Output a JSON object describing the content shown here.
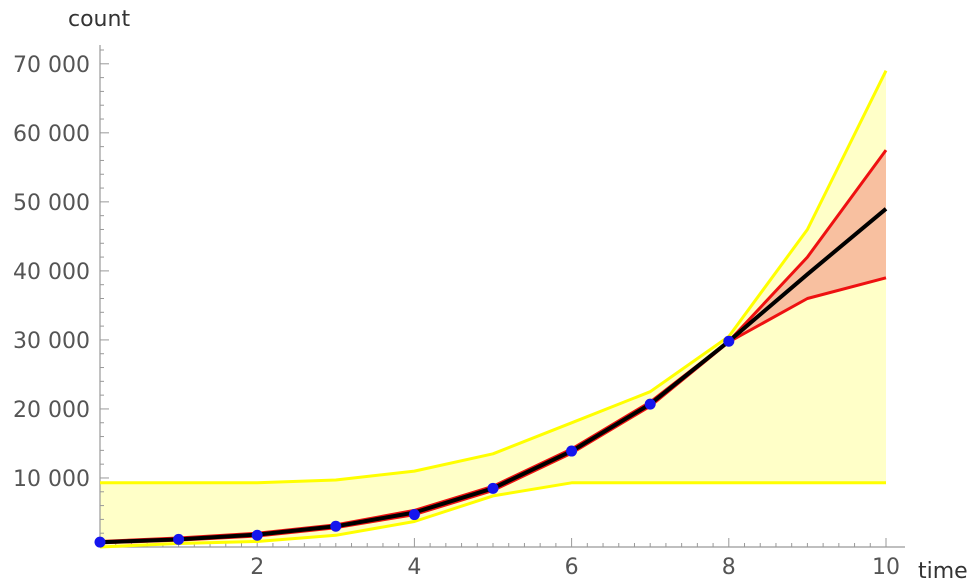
{
  "chart_data": {
    "type": "line",
    "xlabel": "time",
    "ylabel": "count",
    "xlim": [
      0,
      10
    ],
    "ylim": [
      0,
      72000
    ],
    "x_ticks": [
      2,
      4,
      6,
      8,
      10
    ],
    "x_tick_labels": [
      "2",
      "4",
      "6",
      "8",
      "10"
    ],
    "y_ticks": [
      10000,
      20000,
      30000,
      40000,
      50000,
      60000,
      70000
    ],
    "y_tick_labels": [
      "10 000",
      "20 000",
      "30 000",
      "40 000",
      "50 000",
      "60 000",
      "70 000"
    ],
    "grid": false,
    "legend": "none",
    "series": [
      {
        "kind": "yellow-band-upper",
        "color": "#ffff00",
        "x": [
          0,
          1,
          2,
          3,
          4,
          5,
          6,
          7,
          8,
          9,
          10
        ],
        "values": [
          9300,
          9300,
          9300,
          9700,
          11000,
          13500,
          18000,
          22500,
          30500,
          46000,
          69000
        ]
      },
      {
        "kind": "yellow-band-lower",
        "color": "#ffff00",
        "x": [
          0,
          1,
          2,
          3,
          4,
          5,
          6,
          7,
          8,
          9,
          10
        ],
        "values": [
          0,
          500,
          800,
          1700,
          3700,
          7400,
          9300,
          9300,
          9300,
          9300,
          9300
        ]
      },
      {
        "kind": "red-band-upper",
        "color": "#ee1111",
        "x": [
          0,
          1,
          2,
          3,
          4,
          5,
          6,
          7,
          8,
          9,
          10
        ],
        "values": [
          800,
          1300,
          2000,
          3200,
          5300,
          8800,
          14200,
          21000,
          29800,
          42000,
          57500
        ]
      },
      {
        "kind": "red-band-lower",
        "color": "#ee1111",
        "x": [
          0,
          1,
          2,
          3,
          4,
          5,
          6,
          7,
          8,
          9,
          10
        ],
        "values": [
          600,
          1000,
          1600,
          2800,
          4700,
          8200,
          13600,
          20400,
          29700,
          36000,
          39000
        ]
      },
      {
        "kind": "fit-line",
        "color": "#000000",
        "x": [
          0,
          1,
          2,
          3,
          4,
          5,
          6,
          7,
          8,
          9,
          10
        ],
        "values": [
          700,
          1100,
          1800,
          3000,
          5000,
          8500,
          13900,
          20700,
          29800,
          39500,
          49000
        ]
      }
    ],
    "points": {
      "color": "#1515ee",
      "x": [
        0,
        1,
        2,
        3,
        4,
        5,
        6,
        7,
        8
      ],
      "values": [
        700,
        1100,
        1700,
        3000,
        4700,
        8500,
        13900,
        20700,
        29800
      ]
    },
    "colors": {
      "yellow_fill": "#ffffc8",
      "red_fill": "#f8c0a0",
      "axis": "#999999"
    }
  }
}
